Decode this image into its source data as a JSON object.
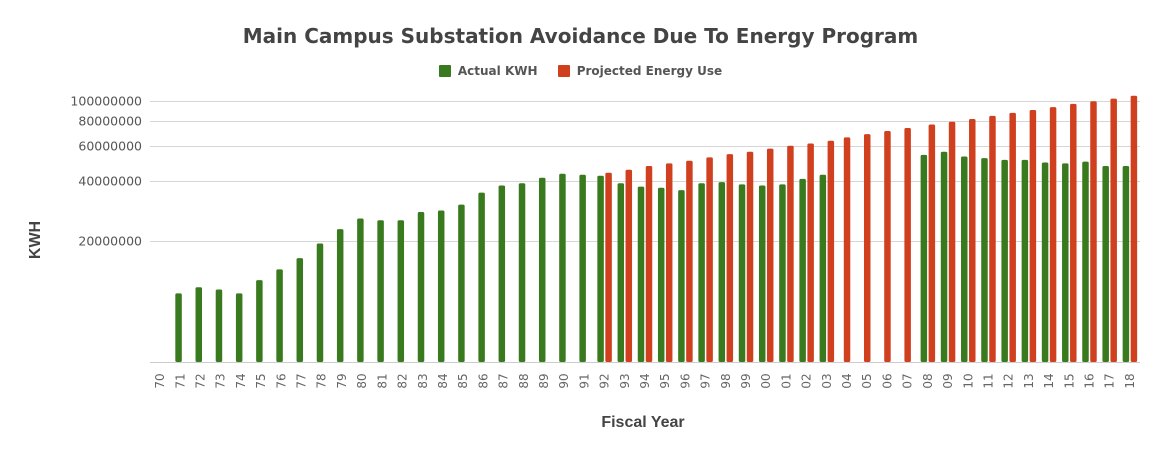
{
  "chart_data": {
    "type": "bar",
    "title": "Main Campus Substation Avoidance Due To Energy Program",
    "xlabel": "Fiscal Year",
    "ylabel": "KWH",
    "ylim": [
      5000000,
      105000000
    ],
    "yscale": "log",
    "yticks": [
      20000000,
      40000000,
      60000000,
      80000000,
      100000000
    ],
    "ytick_labels": [
      "20000000",
      "40000000",
      "60000000",
      "80000000",
      "100000000"
    ],
    "grid": true,
    "legend_position": "top-center",
    "categories": [
      "70",
      "71",
      "72",
      "73",
      "74",
      "75",
      "76",
      "77",
      "78",
      "79",
      "80",
      "81",
      "82",
      "83",
      "84",
      "85",
      "86",
      "87",
      "88",
      "89",
      "90",
      "91",
      "92",
      "93",
      "94",
      "95",
      "96",
      "97",
      "98",
      "99",
      "00",
      "01",
      "02",
      "03",
      "04",
      "05",
      "06",
      "07",
      "08",
      "09",
      "10",
      "11",
      "12",
      "13",
      "14",
      "15",
      "16",
      "17",
      "18"
    ],
    "series": [
      {
        "name": "Actual KWH",
        "color": "#3a7a1e",
        "values": [
          null,
          11000000,
          11800000,
          11500000,
          11000000,
          12800000,
          14500000,
          16500000,
          19500000,
          23000000,
          26000000,
          25500000,
          25500000,
          28000000,
          28500000,
          30500000,
          35000000,
          38000000,
          39000000,
          41500000,
          43500000,
          43000000,
          42500000,
          39000000,
          37500000,
          37000000,
          36000000,
          39000000,
          39500000,
          38500000,
          38000000,
          38500000,
          41000000,
          43000000,
          null,
          null,
          null,
          null,
          54000000,
          56000000,
          53000000,
          52000000,
          51000000,
          51000000,
          49500000,
          49000000,
          50000000,
          47500000,
          47500000
        ]
      },
      {
        "name": "Projected Energy Use",
        "color": "#d0401f",
        "values": [
          null,
          null,
          null,
          null,
          null,
          null,
          null,
          null,
          null,
          null,
          null,
          null,
          null,
          null,
          null,
          null,
          null,
          null,
          null,
          null,
          null,
          null,
          44000000,
          45500000,
          47500000,
          49000000,
          50500000,
          52500000,
          54500000,
          56000000,
          58000000,
          60000000,
          61500000,
          63500000,
          66000000,
          68500000,
          71000000,
          73500000,
          76500000,
          79000000,
          81500000,
          84500000,
          87500000,
          90500000,
          93500000,
          97000000,
          100000000,
          103000000,
          106500000
        ]
      }
    ]
  }
}
